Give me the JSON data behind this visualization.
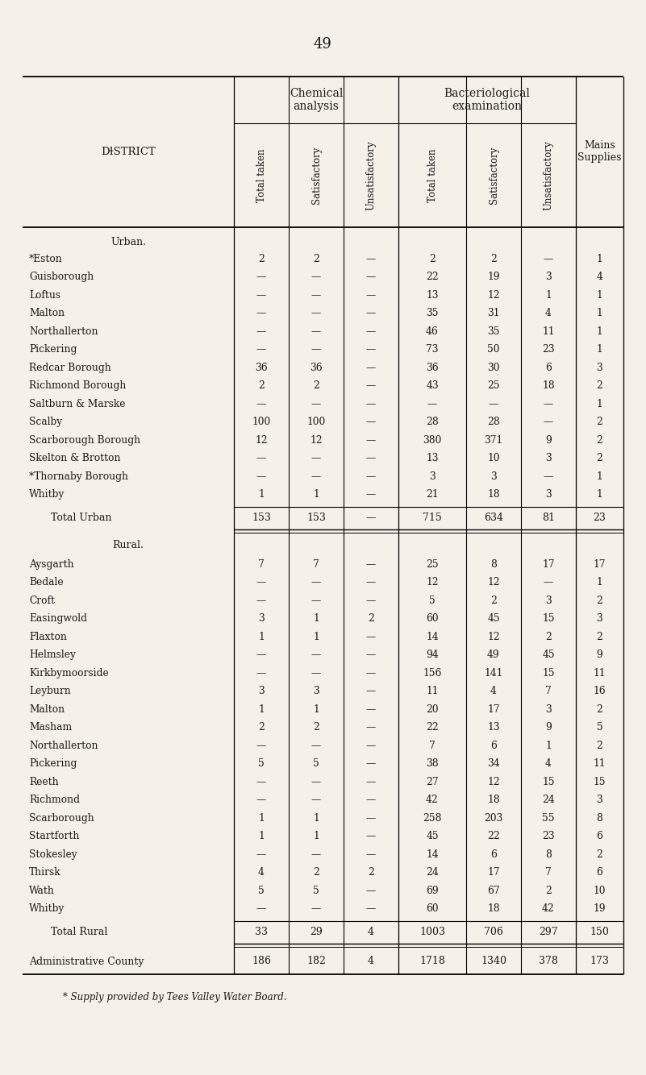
{
  "page_number": "49",
  "bg_color": "#f5f0e8",
  "text_color": "#1a1a1a",
  "footnote": "* Supply provided by Tees Valley Water Board.",
  "urban_rows": [
    [
      "*Eston",
      "2",
      "2",
      "—",
      "2",
      "2",
      "—",
      "1"
    ],
    [
      "Guisborough",
      "—",
      "—",
      "—",
      "22",
      "19",
      "3",
      "4"
    ],
    [
      "Loftus",
      "—",
      "—",
      "—",
      "13",
      "12",
      "1",
      "1"
    ],
    [
      "Malton",
      "—",
      "—",
      "—",
      "35",
      "31",
      "4",
      "1"
    ],
    [
      "Northallerton",
      "—",
      "—",
      "—",
      "46",
      "35",
      "11",
      "1"
    ],
    [
      "Pickering",
      "—",
      "—",
      "—",
      "73",
      "50",
      "23",
      "1"
    ],
    [
      "Redcar Borough",
      "36",
      "36",
      "—",
      "36",
      "30",
      "6",
      "3"
    ],
    [
      "Richmond Borough",
      "2",
      "2",
      "—",
      "43",
      "25",
      "18",
      "2"
    ],
    [
      "Saltburn & Marske",
      "—",
      "—",
      "—",
      "—",
      "—",
      "—",
      "1"
    ],
    [
      "Scalby",
      "100",
      "100",
      "—",
      "28",
      "28",
      "—",
      "2"
    ],
    [
      "Scarborough Borough",
      "12",
      "12",
      "—",
      "380",
      "371",
      "9",
      "2"
    ],
    [
      "Skelton & Brotton",
      "—",
      "—",
      "—",
      "13",
      "10",
      "3",
      "2"
    ],
    [
      "*Thornaby Borough",
      "—",
      "—",
      "—",
      "3",
      "3",
      "—",
      "1"
    ],
    [
      "Whitby",
      "1",
      "1",
      "—",
      "21",
      "18",
      "3",
      "1"
    ]
  ],
  "urban_total": [
    "Total Urban",
    "153",
    "153",
    "—",
    "715",
    "634",
    "81",
    "23"
  ],
  "rural_rows": [
    [
      "Aysgarth",
      "7",
      "7",
      "—",
      "25",
      "8",
      "17",
      "17"
    ],
    [
      "Bedale",
      "—",
      "—",
      "—",
      "12",
      "12",
      "—",
      "1"
    ],
    [
      "Croft",
      "—",
      "—",
      "—",
      "5",
      "2",
      "3",
      "2"
    ],
    [
      "Easingwold",
      "3",
      "1",
      "2",
      "60",
      "45",
      "15",
      "3"
    ],
    [
      "Flaxton",
      "1",
      "1",
      "—",
      "14",
      "12",
      "2",
      "2"
    ],
    [
      "Helmsley",
      "—",
      "—",
      "—",
      "94",
      "49",
      "45",
      "9"
    ],
    [
      "Kirkbymoorside",
      "—",
      "—",
      "—",
      "156",
      "141",
      "15",
      "11"
    ],
    [
      "Leyburn",
      "3",
      "3",
      "—",
      "11",
      "4",
      "7",
      "16"
    ],
    [
      "Malton",
      "1",
      "1",
      "—",
      "20",
      "17",
      "3",
      "2"
    ],
    [
      "Masham",
      "2",
      "2",
      "—",
      "22",
      "13",
      "9",
      "5"
    ],
    [
      "Northallerton",
      "—",
      "—",
      "—",
      "7",
      "6",
      "1",
      "2"
    ],
    [
      "Pickering",
      "5",
      "5",
      "—",
      "38",
      "34",
      "4",
      "11"
    ],
    [
      "Reeth",
      "—",
      "—",
      "—",
      "27",
      "12",
      "15",
      "15"
    ],
    [
      "Richmond",
      "—",
      "—",
      "—",
      "42",
      "18",
      "24",
      "3"
    ],
    [
      "Scarborough",
      "1",
      "1",
      "—",
      "258",
      "203",
      "55",
      "8"
    ],
    [
      "Startforth",
      "1",
      "1",
      "—",
      "45",
      "22",
      "23",
      "6"
    ],
    [
      "Stokesley",
      "—",
      "—",
      "—",
      "14",
      "6",
      "8",
      "2"
    ],
    [
      "Thirsk",
      "4",
      "2",
      "2",
      "24",
      "17",
      "7",
      "6"
    ],
    [
      "Wath",
      "5",
      "5",
      "—",
      "69",
      "67",
      "2",
      "10"
    ],
    [
      "Whitby",
      "—",
      "—",
      "—",
      "60",
      "18",
      "42",
      "19"
    ]
  ],
  "rural_total": [
    "Total Rural",
    "33",
    "29",
    "4",
    "1003",
    "706",
    "297",
    "150"
  ],
  "admin_total": [
    "Administrative County",
    "186",
    "182",
    "4",
    "1718",
    "1340",
    "378",
    "173"
  ]
}
